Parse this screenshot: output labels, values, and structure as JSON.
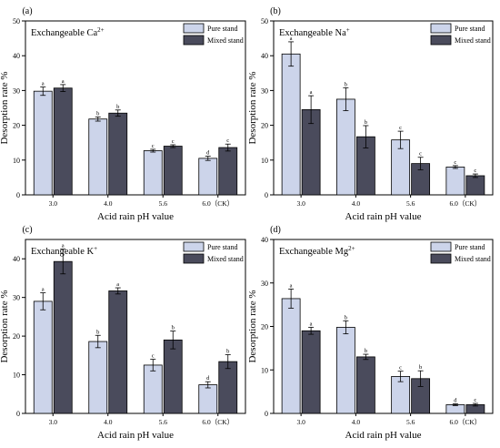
{
  "chart_data": [
    {
      "type": "bar",
      "panel_label": "(a)",
      "title_main": "Exchangeable Ca",
      "title_sup": "2+",
      "xlabel": "Acid rain pH value",
      "ylabel": "Desorption rate  %",
      "categories": [
        "3.0",
        "4.0",
        "5.6",
        "6.0（CK）"
      ],
      "ylim": [
        0,
        50
      ],
      "yticks": [
        0,
        10,
        20,
        30,
        40,
        50
      ],
      "legend_position": "top-right",
      "series": [
        {
          "name": "Pure stand",
          "values": [
            29.8,
            21.8,
            12.7,
            10.5
          ],
          "errors": [
            1.2,
            0.6,
            0.4,
            0.6
          ],
          "letters": [
            "a",
            "b",
            "c",
            "d"
          ]
        },
        {
          "name": "Mixed stand",
          "values": [
            30.7,
            23.5,
            14.0,
            13.6
          ],
          "errors": [
            1.0,
            0.9,
            0.4,
            1.0
          ],
          "letters": [
            "a",
            "b",
            "c",
            "c"
          ]
        }
      ]
    },
    {
      "type": "bar",
      "panel_label": "(b)",
      "title_main": "Exchangeable Na",
      "title_sup": "+",
      "xlabel": "Acid rain pH value",
      "ylabel": "Desorption rate  %",
      "categories": [
        "3.0",
        "4.0",
        "5.6",
        "6.0（CK）"
      ],
      "ylim": [
        0,
        50
      ],
      "yticks": [
        0,
        10,
        20,
        30,
        40,
        50
      ],
      "legend_position": "top-right",
      "series": [
        {
          "name": "Pure stand",
          "values": [
            40.5,
            27.5,
            15.8,
            8.0
          ],
          "errors": [
            3.5,
            3.3,
            2.5,
            0.4
          ],
          "letters": [
            "a",
            "b",
            "c",
            "c"
          ]
        },
        {
          "name": "Mixed stand",
          "values": [
            24.5,
            16.7,
            9.0,
            5.5
          ],
          "errors": [
            4.0,
            3.2,
            1.8,
            0.5
          ],
          "letters": [
            "a",
            "b",
            "c",
            "c"
          ]
        }
      ]
    },
    {
      "type": "bar",
      "panel_label": "(c)",
      "title_main": "Exchangeable K",
      "title_sup": "+",
      "xlabel": "Acid rain pH value",
      "ylabel": "Desorption rate  %",
      "categories": [
        "3.0",
        "4.0",
        "5.6",
        "6.0（CK）"
      ],
      "ylim": [
        0,
        45
      ],
      "yticks": [
        0,
        10,
        20,
        30,
        40
      ],
      "legend_position": "top-right",
      "series": [
        {
          "name": "Pure stand",
          "values": [
            29.0,
            18.6,
            12.5,
            7.4
          ],
          "errors": [
            2.2,
            1.6,
            1.5,
            0.8
          ],
          "letters": [
            "a",
            "b",
            "c",
            "d"
          ]
        },
        {
          "name": "Mixed stand",
          "values": [
            39.3,
            31.7,
            19.0,
            13.4
          ],
          "errors": [
            3.2,
            0.8,
            2.3,
            1.8
          ],
          "letters": [
            "a",
            "a",
            "b",
            "b"
          ]
        }
      ]
    },
    {
      "type": "bar",
      "panel_label": "(d)",
      "title_main": "Exchangeable Mg",
      "title_sup": "2+",
      "xlabel": "Acid rain pH value",
      "ylabel": "Desorption rate  %",
      "categories": [
        "3.0",
        "4.0",
        "5.6",
        "6.0（CK）"
      ],
      "ylim": [
        0,
        40
      ],
      "yticks": [
        0,
        10,
        20,
        30,
        40
      ],
      "legend_position": "top-right",
      "series": [
        {
          "name": "Pure stand",
          "values": [
            26.4,
            19.8,
            8.5,
            2.0
          ],
          "errors": [
            2.2,
            1.5,
            1.2,
            0.2
          ],
          "letters": [
            "a",
            "b",
            "c",
            "d"
          ]
        },
        {
          "name": "Mixed stand",
          "values": [
            19.0,
            13.0,
            8.0,
            2.0
          ],
          "errors": [
            0.8,
            0.6,
            1.8,
            0.3
          ],
          "letters": [
            "a",
            "b",
            "b",
            "c"
          ]
        }
      ]
    }
  ],
  "colors": {
    "pure": "#ccd4ea",
    "mixed": "#4a4b5c"
  }
}
